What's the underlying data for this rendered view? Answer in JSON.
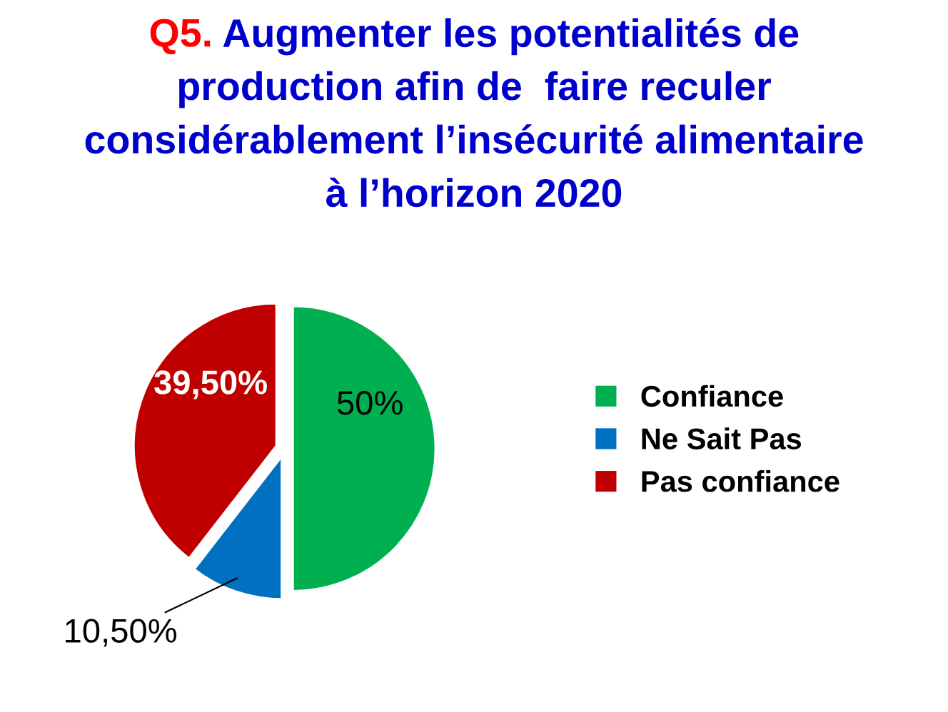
{
  "chart_data": {
    "type": "pie",
    "title": "Q5. Augmenter les potentialités de\nproduction afin de  faire reculer\nconsidérablement l’insécurité alimentaire\nà l’horizon 2020",
    "categories": [
      "Confiance",
      "Ne Sait Pas",
      "Pas confiance"
    ],
    "values": [
      50,
      10.5,
      39.5
    ],
    "value_labels": [
      "50%",
      "10,50%",
      "39,50%"
    ],
    "colors": [
      "#00b050",
      "#0070c0",
      "#c00000"
    ],
    "legend": "right"
  }
}
